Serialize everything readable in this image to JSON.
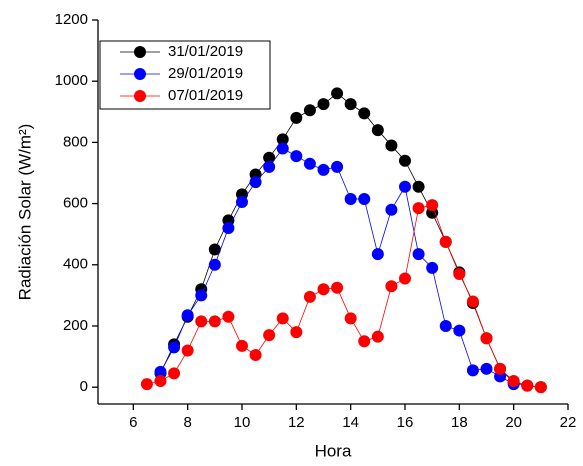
{
  "chart_data": {
    "type": "line",
    "xlabel": "Hora",
    "ylabel": "Radiación Solar (W/m²)",
    "xlim": [
      4.7,
      22
    ],
    "xticks": [
      6,
      8,
      10,
      12,
      14,
      16,
      18,
      20,
      22
    ],
    "ylim": [
      -55,
      1200
    ],
    "yticks": [
      0,
      200,
      400,
      600,
      800,
      1000,
      1200
    ],
    "legend": "upper-left",
    "series": [
      {
        "name": "31/01/2019",
        "color": "#000000",
        "x": [
          7,
          7.5,
          8,
          8.5,
          9,
          9.5,
          10,
          10.5,
          11,
          11.5,
          12,
          12.5,
          13,
          13.5,
          14,
          14.5,
          15,
          15.5,
          16,
          16.5,
          17,
          17.5,
          18,
          18.5,
          19,
          19.5,
          20,
          20.5,
          21
        ],
        "values": [
          45,
          140,
          230,
          320,
          450,
          545,
          630,
          695,
          750,
          810,
          880,
          905,
          925,
          960,
          925,
          895,
          840,
          790,
          740,
          655,
          570,
          475,
          375,
          275,
          160,
          60,
          15,
          5,
          0
        ]
      },
      {
        "name": "29/01/2019",
        "color": "#0000ff",
        "x": [
          7,
          7.5,
          8,
          8.5,
          9,
          9.5,
          10,
          10.5,
          11,
          11.5,
          12,
          12.5,
          13,
          13.5,
          14,
          14.5,
          15,
          15.5,
          16,
          16.5,
          17,
          17.5,
          18,
          18.5,
          19,
          19.5,
          20
        ],
        "values": [
          50,
          130,
          235,
          300,
          400,
          520,
          605,
          670,
          720,
          780,
          755,
          730,
          710,
          720,
          615,
          615,
          435,
          580,
          655,
          435,
          390,
          200,
          185,
          55,
          60,
          35,
          10
        ]
      },
      {
        "name": "07/01/2019",
        "color": "#ff0000",
        "x": [
          6.5,
          7,
          7.5,
          8,
          8.5,
          9,
          9.5,
          10,
          10.5,
          11,
          11.5,
          12,
          12.5,
          13,
          13.5,
          14,
          14.5,
          15,
          15.5,
          16,
          16.5,
          17,
          17.5,
          18,
          18.5,
          19,
          19.5,
          20,
          20.5,
          21
        ],
        "values": [
          10,
          20,
          45,
          120,
          215,
          215,
          230,
          135,
          105,
          170,
          225,
          180,
          295,
          320,
          325,
          225,
          150,
          165,
          330,
          355,
          585,
          595,
          475,
          370,
          280,
          160,
          60,
          20,
          5,
          0
        ]
      }
    ]
  }
}
